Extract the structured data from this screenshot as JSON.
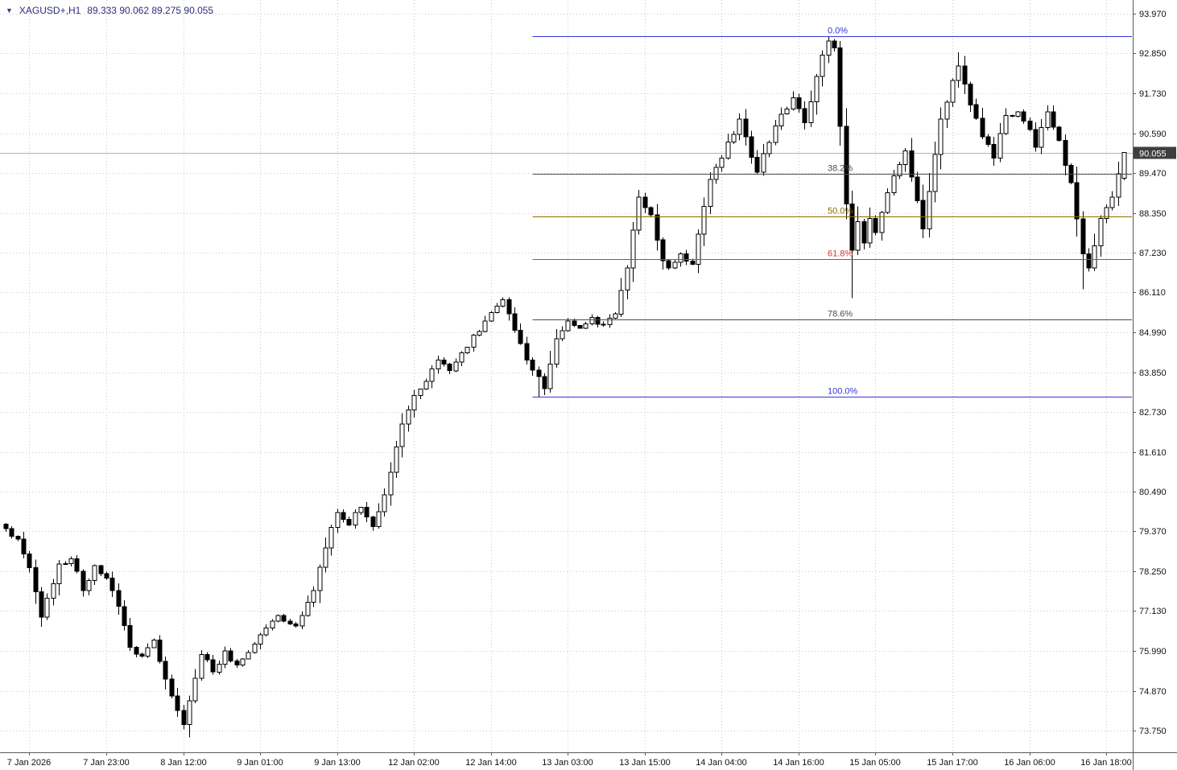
{
  "quote_bar": {
    "dropdown_icon": "triangle-down",
    "symbol_timeframe": "XAGUSD+,H1",
    "ohlc_text": "89.333 90.062 89.275 90.055"
  },
  "price_axis": {
    "ticks": [
      "93.970",
      "92.850",
      "91.730",
      "90.590",
      "89.470",
      "88.350",
      "87.230",
      "86.110",
      "84.990",
      "83.850",
      "82.730",
      "81.610",
      "80.490",
      "79.370",
      "78.250",
      "77.130",
      "75.990",
      "74.870",
      "73.750"
    ],
    "current_price_label": "90.055",
    "current_price_bg": "#3f3f3f",
    "current_price_fg": "#ffffff"
  },
  "time_axis": {
    "labels": [
      "7 Jan 2026",
      "7 Jan 23:00",
      "8 Jan 12:00",
      "9 Jan 01:00",
      "9 Jan 13:00",
      "12 Jan 02:00",
      "12 Jan 14:00",
      "13 Jan 03:00",
      "13 Jan 15:00",
      "14 Jan 04:00",
      "14 Jan 16:00",
      "15 Jan 05:00",
      "15 Jan 17:00",
      "16 Jan 06:00",
      "16 Jan 18:00"
    ]
  },
  "fibonacci": {
    "start_bar": 89,
    "levels": [
      {
        "label": "0.0%",
        "price": 93.33,
        "color": "#3535d3"
      },
      {
        "label": "38.2%",
        "price": 89.45,
        "color": "#4d4d4d"
      },
      {
        "label": "50.0%",
        "price": 88.25,
        "color": "#8a6d00"
      },
      {
        "label": "61.8%",
        "price": 87.05,
        "color": "#e03131"
      },
      {
        "label": "78.6%",
        "price": 85.34,
        "color": "#4d4d4d"
      },
      {
        "label": "100.0%",
        "price": 83.17,
        "color": "#3535d3"
      }
    ]
  },
  "chart_data": {
    "type": "candlestick",
    "title": "XAGUSD+ H1",
    "symbol": "XAGUSD+",
    "timeframe": "H1",
    "bar_count": 190,
    "seed": 1337,
    "noise": 0.11,
    "first_open_offset": 0.12,
    "bull_color": "#ffffff",
    "bear_color": "#000000",
    "outline": "#000000",
    "grid_color": "#c9c9cf",
    "current_price_line_color": "#b5b5b5",
    "axis_color": "#5a5a5a",
    "ylim": [
      73.75,
      93.97
    ],
    "current_bar": {
      "open": 89.333,
      "high": 90.062,
      "low": 89.275,
      "close": 90.055
    },
    "label_bar_indices": [
      4,
      17,
      30,
      43,
      56,
      69,
      82,
      95,
      108,
      121,
      134,
      147,
      160,
      173,
      186
    ],
    "path": [
      [
        0,
        79.45
      ],
      [
        2,
        79.15
      ],
      [
        4,
        78.35
      ],
      [
        6,
        76.95
      ],
      [
        9,
        78.45
      ],
      [
        11,
        78.6
      ],
      [
        13,
        77.7
      ],
      [
        15,
        78.4
      ],
      [
        17,
        78.05
      ],
      [
        19,
        77.25
      ],
      [
        21,
        76.1
      ],
      [
        23,
        75.85
      ],
      [
        25,
        76.3
      ],
      [
        27,
        75.2
      ],
      [
        30,
        73.92
      ],
      [
        33,
        75.9
      ],
      [
        35,
        75.4
      ],
      [
        37,
        76.0
      ],
      [
        39,
        75.6
      ],
      [
        43,
        76.45
      ],
      [
        46,
        77.0
      ],
      [
        49,
        76.7
      ],
      [
        52,
        77.7
      ],
      [
        54,
        78.9
      ],
      [
        56,
        79.9
      ],
      [
        58,
        79.55
      ],
      [
        60,
        80.05
      ],
      [
        62,
        79.5
      ],
      [
        64,
        80.4
      ],
      [
        67,
        82.4
      ],
      [
        69,
        83.2
      ],
      [
        73,
        84.2
      ],
      [
        75,
        83.9
      ],
      [
        77,
        84.4
      ],
      [
        81,
        85.3
      ],
      [
        84,
        85.9
      ],
      [
        88,
        84.2
      ],
      [
        91,
        83.4
      ],
      [
        93,
        84.8
      ],
      [
        95,
        85.3
      ],
      [
        97,
        85.1
      ],
      [
        99,
        85.4
      ],
      [
        101,
        85.2
      ],
      [
        103,
        85.5
      ],
      [
        105,
        86.8
      ],
      [
        107,
        88.8
      ],
      [
        109,
        88.3
      ],
      [
        111,
        87.0
      ],
      [
        112,
        86.8
      ],
      [
        114,
        87.2
      ],
      [
        116,
        86.9
      ],
      [
        119,
        89.3
      ],
      [
        121,
        89.9
      ],
      [
        124,
        91.0
      ],
      [
        127,
        89.5
      ],
      [
        130,
        90.8
      ],
      [
        133,
        91.6
      ],
      [
        135,
        90.9
      ],
      [
        137,
        92.2
      ],
      [
        139,
        93.2
      ],
      [
        140,
        93.0
      ],
      [
        142,
        88.6
      ],
      [
        143,
        87.3
      ],
      [
        144,
        88.1
      ],
      [
        145,
        87.5
      ],
      [
        146,
        88.2
      ],
      [
        147,
        87.8
      ],
      [
        150,
        89.4
      ],
      [
        152,
        90.1
      ],
      [
        154,
        88.7
      ],
      [
        155,
        87.9
      ],
      [
        158,
        91.0
      ],
      [
        161,
        92.5
      ],
      [
        163,
        91.4
      ],
      [
        165,
        90.5
      ],
      [
        167,
        89.9
      ],
      [
        169,
        91.1
      ],
      [
        171,
        91.2
      ],
      [
        173,
        90.7
      ],
      [
        174,
        90.2
      ],
      [
        176,
        91.2
      ],
      [
        178,
        90.4
      ],
      [
        180,
        89.2
      ],
      [
        182,
        87.2
      ],
      [
        183,
        86.8
      ],
      [
        185,
        88.2
      ],
      [
        187,
        88.8
      ],
      [
        189,
        90.055
      ]
    ],
    "extremes": [
      {
        "i": 30,
        "low": 73.78
      },
      {
        "i": 90,
        "low": 83.17
      },
      {
        "i": 139,
        "high": 93.33
      },
      {
        "i": 143,
        "low": 85.95
      },
      {
        "i": 161,
        "high": 92.88
      },
      {
        "i": 182,
        "low": 86.2
      }
    ]
  }
}
